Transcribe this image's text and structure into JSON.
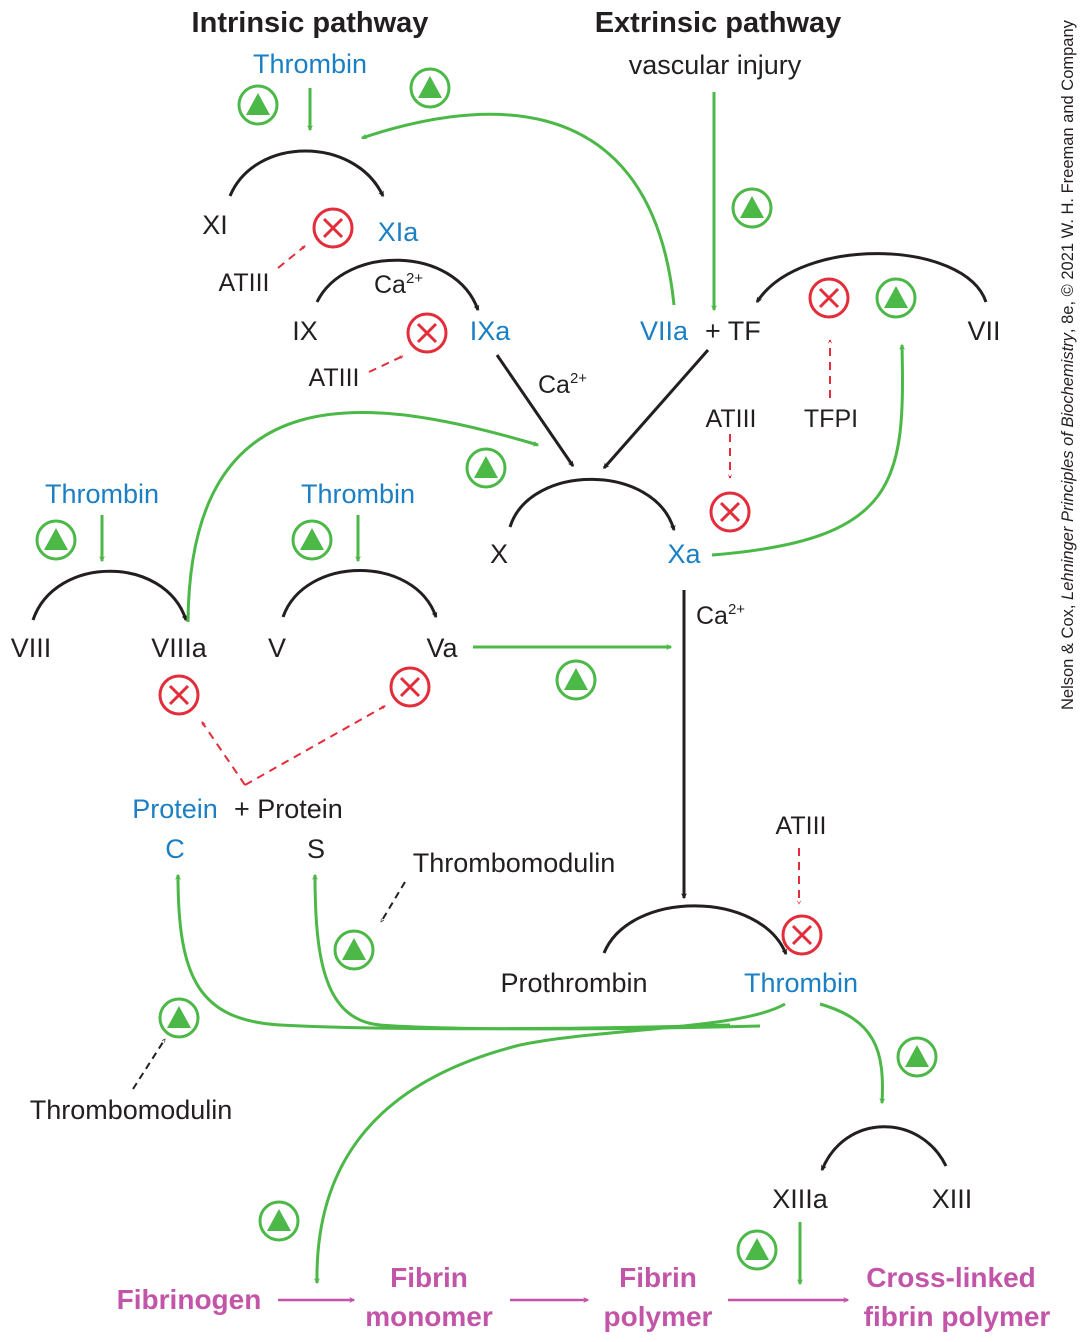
{
  "colors": {
    "black": "#231f20",
    "blue": "#1b7fc4",
    "green": "#4cb848",
    "red": "#e32d3a",
    "pink": "#c355a8"
  },
  "icons": {
    "activation": "green-circled-triangle-icon",
    "inhibition": "red-circled-x-icon"
  },
  "headers": {
    "intrinsic": "Intrinsic pathway",
    "extrinsic": "Extrinsic pathway",
    "vascular_injury": "vascular injury"
  },
  "labels": {
    "thrombin_top": "Thrombin",
    "xi": "XI",
    "xia": "XIa",
    "atiii_1": "ATIII",
    "ix": "IX",
    "ca_1": "Ca",
    "ixa": "IXa",
    "atiii_2": "ATIII",
    "ca_2": "Ca",
    "viia": "VIIa",
    "plus_tf": "+ TF",
    "vii": "VII",
    "atiii_3": "ATIII",
    "tfpi": "TFPI",
    "x": "X",
    "xa": "Xa",
    "ca_3": "Ca",
    "sup": "2+",
    "thrombin_left": "Thrombin",
    "thrombin_mid": "Thrombin",
    "viii": "VIII",
    "viiia": "VIIIa",
    "v": "V",
    "va": "Va",
    "protein_c_1": "Protein",
    "protein_c_2": "C",
    "plus_protein": "+ Protein",
    "protein_s_2": "S",
    "thrombomodulin_right": "Thrombomodulin",
    "thrombomodulin_left": "Thrombomodulin",
    "atiii_4": "ATIII",
    "prothrombin": "Prothrombin",
    "thrombin_main": "Thrombin",
    "xiiia": "XIIIa",
    "xiii": "XIII"
  },
  "fibrin": {
    "fibrinogen": "Fibrinogen",
    "monomer_1": "Fibrin",
    "monomer_2": "monomer",
    "polymer_1": "Fibrin",
    "polymer_2": "polymer",
    "crosslinked_1": "Cross-linked",
    "crosslinked_2": "fibrin polymer"
  },
  "copyright": {
    "part1": "Nelson & Cox, ",
    "title": "Lehninger Principles of Biochemistry",
    "part2": ", 8e, © 2021 W. H. Freeman and Company"
  }
}
